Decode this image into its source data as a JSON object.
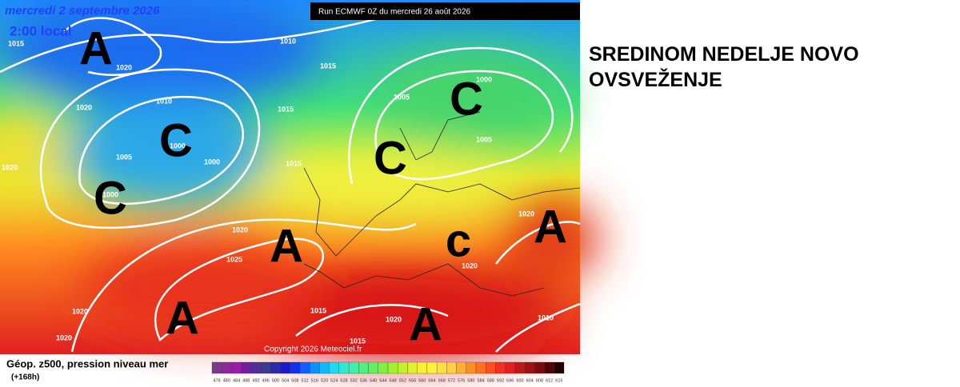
{
  "map": {
    "date": "mercredi 2 septembre 2026",
    "time": "2:00 local",
    "run": "Run ECMWF 0Z du mercredi 26 août 2026",
    "copyright": "Copyright 2026 Meteociel.fr",
    "pressure_labels": [
      "1015",
      "1020",
      "1010",
      "1015",
      "1020",
      "1010",
      "1015",
      "1000",
      "1005",
      "1005",
      "1000",
      "1000",
      "1015",
      "1005",
      "1020",
      "1000",
      "1020",
      "1020",
      "1025",
      "1020",
      "1020",
      "1015",
      "1020",
      "1015",
      "1010",
      "1020"
    ],
    "centers": [
      "A",
      "C",
      "C",
      "C",
      "C",
      "A",
      "c",
      "A",
      "A",
      "A"
    ]
  },
  "headline": "SREDINOM NEDELJE NOVO OVSVEŽENJE",
  "legend": {
    "title": "Géop. z500, pression niveau mer",
    "subtitle": "(+168h)",
    "scale": [
      "476",
      "480",
      "484",
      "488",
      "492",
      "496",
      "500",
      "504",
      "508",
      "512",
      "516",
      "520",
      "524",
      "528",
      "532",
      "536",
      "540",
      "544",
      "548",
      "552",
      "556",
      "560",
      "564",
      "568",
      "572",
      "576",
      "580",
      "584",
      "588",
      "592",
      "596",
      "600",
      "604",
      "608",
      "612",
      "616"
    ]
  }
}
